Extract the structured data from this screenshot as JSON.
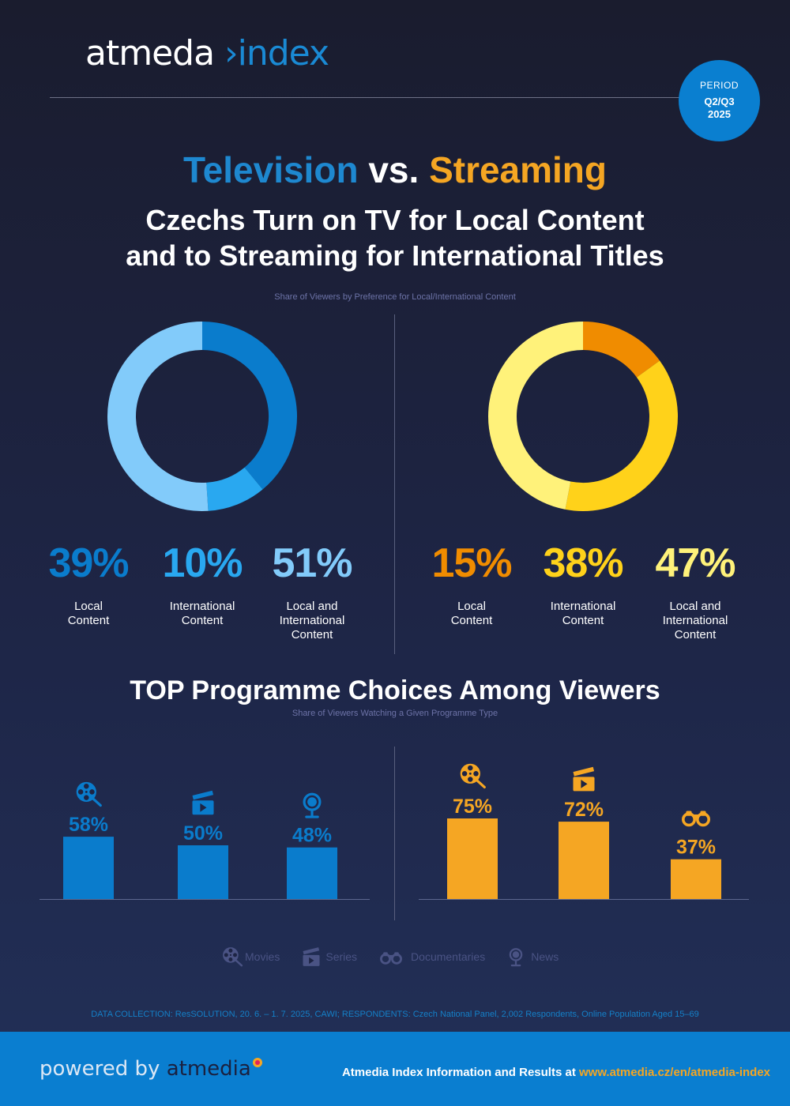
{
  "logo": {
    "part1": "atmed",
    "part2": "a",
    "part3": " ›index"
  },
  "period": {
    "label": "PERIOD",
    "quarters": "Q2/Q3",
    "year": "2025"
  },
  "headline": {
    "tv": "Television",
    "vs": " vs. ",
    "streaming": "Streaming"
  },
  "subhead": {
    "line1": "Czechs Turn on TV for Local Content",
    "line2": "and to Streaming for International Titles"
  },
  "colors": {
    "tv_dark": "#0a7ccc",
    "tv_mid": "#29a8f0",
    "tv_light": "#82cbfa",
    "st_dark": "#f08c00",
    "st_mid": "#ffd21a",
    "st_light": "#fff27a",
    "tv_bar": "#0a7ccc",
    "st_bar": "#f5a623"
  },
  "chart_data": [
    {
      "type": "pie",
      "title": "Share of Viewers by Preference for Local/International Content",
      "series_name": "Television",
      "slices": [
        {
          "label_line1": "Local",
          "label_line2": "Content",
          "label_line3": "",
          "value": 39,
          "display": "39%"
        },
        {
          "label_line1": "International",
          "label_line2": "Content",
          "label_line3": "",
          "value": 10,
          "display": "10%"
        },
        {
          "label_line1": "Local and",
          "label_line2": "International",
          "label_line3": "Content",
          "value": 51,
          "display": "51%"
        }
      ]
    },
    {
      "type": "pie",
      "series_name": "Streaming",
      "slices": [
        {
          "label_line1": "Local",
          "label_line2": "Content",
          "label_line3": "",
          "value": 15,
          "display": "15%"
        },
        {
          "label_line1": "International",
          "label_line2": "Content",
          "label_line3": "",
          "value": 38,
          "display": "38%"
        },
        {
          "label_line1": "Local and",
          "label_line2": "International",
          "label_line3": "Content",
          "value": 47,
          "display": "47%"
        }
      ]
    },
    {
      "type": "bar",
      "title": "TOP Programme Choices Among Viewers",
      "subtitle": "Share of Viewers Watching a Given Programme Type",
      "series_name": "Television",
      "categories": [
        "Movies",
        "Series",
        "News"
      ],
      "values": [
        58,
        50,
        48
      ],
      "display": [
        "58%",
        "50%",
        "48%"
      ],
      "icons": [
        "film-reel-icon",
        "clapperboard-icon",
        "globe-icon"
      ]
    },
    {
      "type": "bar",
      "series_name": "Streaming",
      "categories": [
        "Movies",
        "Series",
        "Documentaries"
      ],
      "values": [
        75,
        72,
        37
      ],
      "display": [
        "75%",
        "72%",
        "37%"
      ],
      "icons": [
        "film-reel-icon",
        "clapperboard-icon",
        "binoculars-icon"
      ]
    }
  ],
  "legend": [
    "Movies",
    "Series",
    "Documentaries",
    "News"
  ],
  "data_note": "DATA COLLECTION: ResSOLUTION, 20. 6. – 1. 7. 2025, CAWI; RESPONDENTS: Czech National Panel, 2,002 Respondents, Online Population Aged 15–69",
  "footer": {
    "powered": "powered by ",
    "brand": "atmedia",
    "info": "Atmedia Index Information and Results at ",
    "url": "www.atmedia.cz/en/atmedia-index"
  }
}
